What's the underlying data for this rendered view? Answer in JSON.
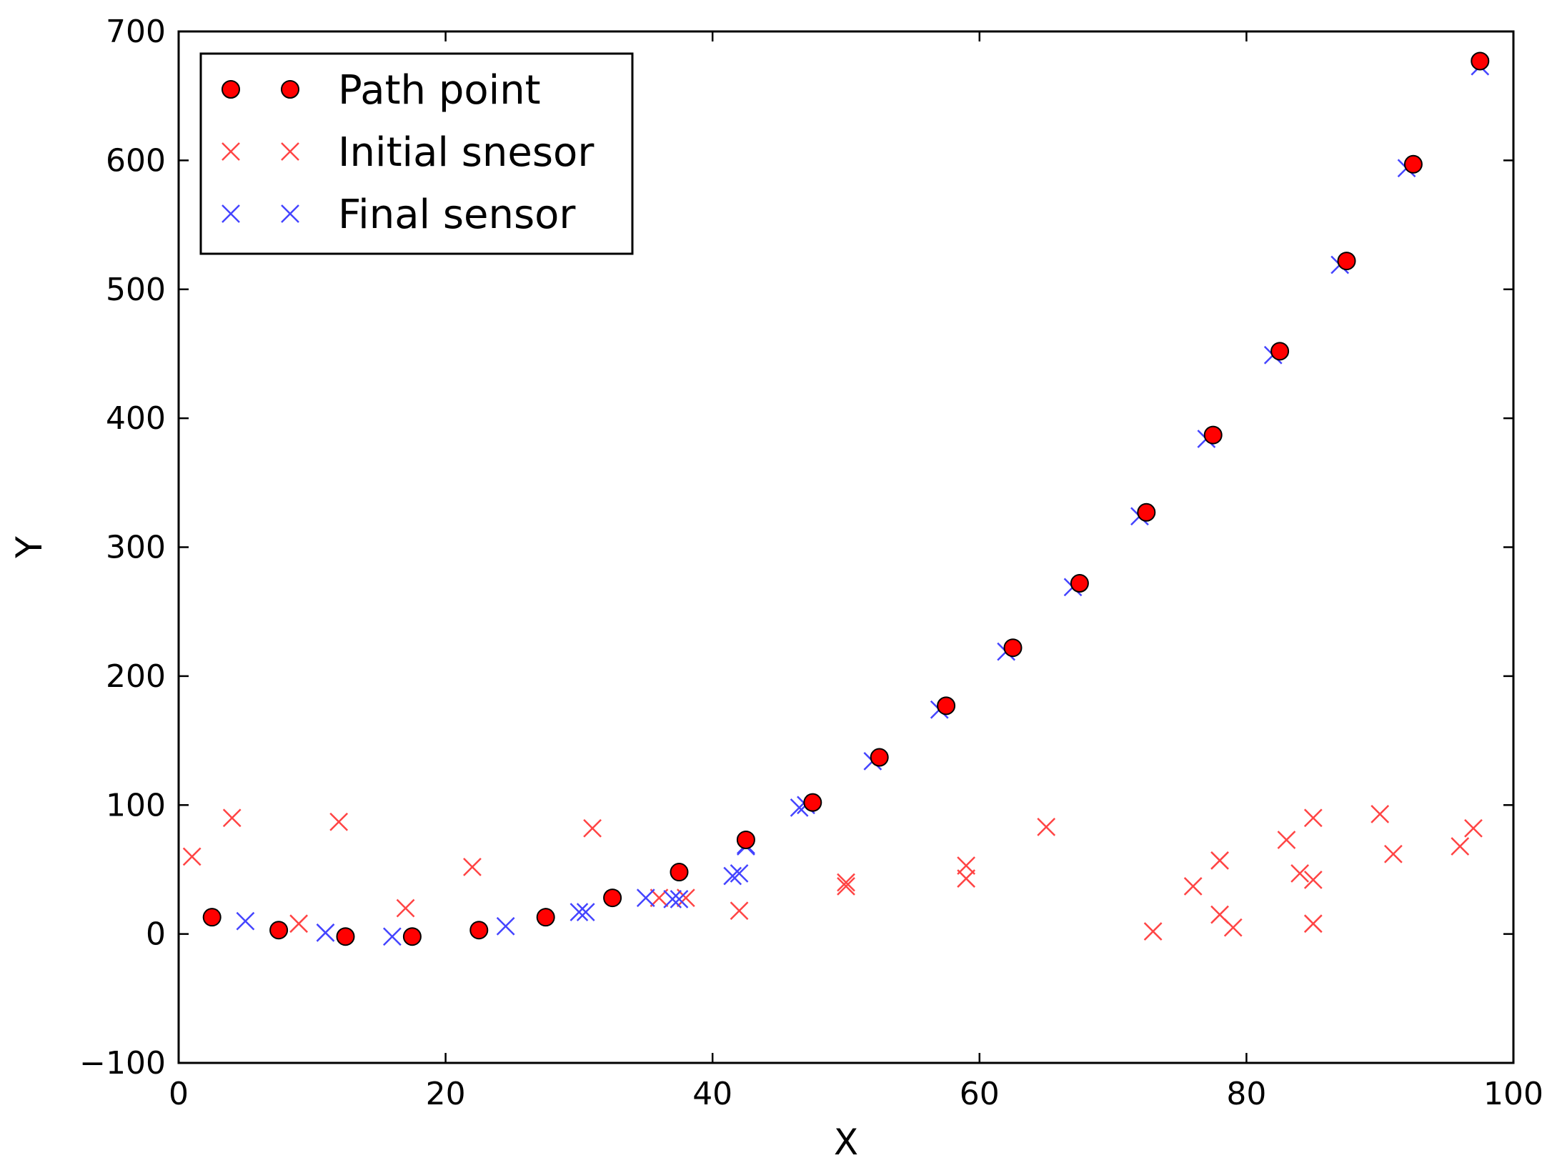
{
  "chart_data": {
    "type": "scatter",
    "title": "",
    "xlabel": "X",
    "ylabel": "Y",
    "xlim": [
      0,
      100
    ],
    "ylim": [
      -100,
      700
    ],
    "xticks": [
      0,
      20,
      40,
      60,
      80,
      100
    ],
    "yticks": [
      -100,
      0,
      100,
      200,
      300,
      400,
      500,
      600,
      700
    ],
    "grid": false,
    "legend_position": "top-left",
    "series": [
      {
        "name": "Path point",
        "marker": "circle",
        "color": "#ff0000",
        "points": [
          [
            2.5,
            13
          ],
          [
            7.5,
            3
          ],
          [
            12.5,
            -2
          ],
          [
            17.5,
            -2
          ],
          [
            22.5,
            3
          ],
          [
            27.5,
            13
          ],
          [
            32.5,
            28
          ],
          [
            37.5,
            48
          ],
          [
            42.5,
            73
          ],
          [
            47.5,
            102
          ],
          [
            52.5,
            137
          ],
          [
            57.5,
            177
          ],
          [
            62.5,
            222
          ],
          [
            67.5,
            272
          ],
          [
            72.5,
            327
          ],
          [
            77.5,
            387
          ],
          [
            82.5,
            452
          ],
          [
            87.5,
            522
          ],
          [
            92.5,
            597
          ],
          [
            97.5,
            677
          ]
        ]
      },
      {
        "name": "Initial snesor",
        "marker": "x",
        "color": "#ff4444",
        "points": [
          [
            1,
            60
          ],
          [
            4,
            90
          ],
          [
            9,
            8
          ],
          [
            12,
            87
          ],
          [
            17,
            20
          ],
          [
            22,
            52
          ],
          [
            31,
            82
          ],
          [
            36,
            28
          ],
          [
            38,
            28
          ],
          [
            42,
            18
          ],
          [
            50,
            37
          ],
          [
            50,
            40
          ],
          [
            59,
            43
          ],
          [
            59,
            53
          ],
          [
            65,
            83
          ],
          [
            73,
            2
          ],
          [
            76,
            37
          ],
          [
            78,
            57
          ],
          [
            78,
            15
          ],
          [
            79,
            5
          ],
          [
            83,
            73
          ],
          [
            84,
            47
          ],
          [
            85,
            90
          ],
          [
            85,
            42
          ],
          [
            85,
            8
          ],
          [
            90,
            93
          ],
          [
            91,
            62
          ],
          [
            96,
            68
          ],
          [
            97,
            82
          ]
        ]
      },
      {
        "name": "Final sensor",
        "marker": "x",
        "color": "#4444ff",
        "points": [
          [
            5,
            10
          ],
          [
            11,
            1
          ],
          [
            16,
            -2
          ],
          [
            24.5,
            6
          ],
          [
            30,
            17
          ],
          [
            30.5,
            17
          ],
          [
            35,
            28
          ],
          [
            37,
            27
          ],
          [
            37.5,
            27
          ],
          [
            41.5,
            45
          ],
          [
            42,
            47
          ],
          [
            42.5,
            69
          ],
          [
            42.5,
            68
          ],
          [
            46.5,
            98
          ],
          [
            47,
            100
          ],
          [
            52,
            134
          ],
          [
            57,
            174
          ],
          [
            62,
            219
          ],
          [
            67,
            269
          ],
          [
            72,
            324
          ],
          [
            77,
            384
          ],
          [
            82,
            449
          ],
          [
            87,
            519
          ],
          [
            92,
            594
          ],
          [
            97.5,
            673
          ]
        ]
      }
    ]
  }
}
